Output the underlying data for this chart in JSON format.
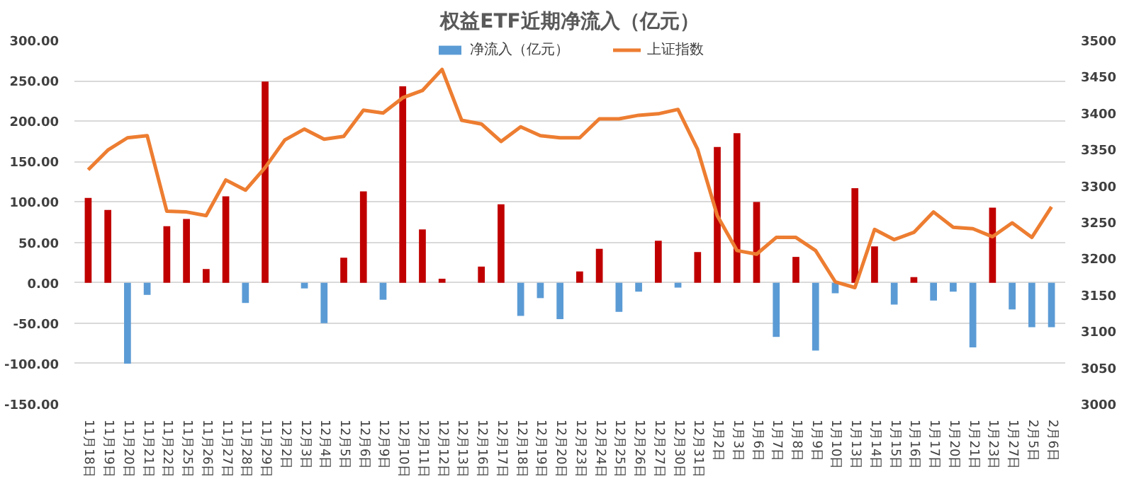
{
  "chart_data": {
    "type": "bar",
    "title": "权益ETF近期净流入（亿元）",
    "categories": [
      "11月18日",
      "11月19日",
      "11月20日",
      "11月21日",
      "11月22日",
      "11月25日",
      "11月26日",
      "11月27日",
      "11月28日",
      "11月29日",
      "12月2日",
      "12月3日",
      "12月4日",
      "12月5日",
      "12月6日",
      "12月9日",
      "12月10日",
      "12月11日",
      "12月12日",
      "12月13日",
      "12月16日",
      "12月17日",
      "12月18日",
      "12月19日",
      "12月20日",
      "12月23日",
      "12月24日",
      "12月25日",
      "12月26日",
      "12月27日",
      "12月30日",
      "12月31日",
      "1月2日",
      "1月3日",
      "1月6日",
      "1月7日",
      "1月8日",
      "1月9日",
      "1月10日",
      "1月13日",
      "1月14日",
      "1月15日",
      "1月16日",
      "1月17日",
      "1月20日",
      "1月21日",
      "1月23日",
      "1月27日",
      "2月5日",
      "2月6日"
    ],
    "series": [
      {
        "name": "净流入（亿元）",
        "color": "#5b9bd5",
        "values": [
          105,
          90,
          -100,
          -15,
          70,
          79,
          17,
          107,
          -25,
          249,
          0,
          -7,
          -50,
          31,
          113,
          -21,
          243,
          66,
          5,
          0,
          20,
          97,
          -41,
          -19,
          -45,
          14,
          42,
          -36,
          -11,
          52,
          -6,
          38,
          168,
          185,
          100,
          -67,
          32,
          -84,
          -13,
          117,
          45,
          -27,
          7,
          -22,
          -11,
          -80,
          93,
          -33,
          -55,
          -55
        ],
        "colors": [
          "#c00000",
          "#c00000",
          "#5b9bd5",
          "#5b9bd5",
          "#c00000",
          "#c00000",
          "#c00000",
          "#c00000",
          "#5b9bd5",
          "#c00000",
          "#c00000",
          "#5b9bd5",
          "#5b9bd5",
          "#c00000",
          "#c00000",
          "#5b9bd5",
          "#c00000",
          "#c00000",
          "#c00000",
          "#c00000",
          "#c00000",
          "#c00000",
          "#5b9bd5",
          "#5b9bd5",
          "#5b9bd5",
          "#c00000",
          "#c00000",
          "#5b9bd5",
          "#5b9bd5",
          "#c00000",
          "#5b9bd5",
          "#c00000",
          "#c00000",
          "#c00000",
          "#c00000",
          "#5b9bd5",
          "#c00000",
          "#5b9bd5",
          "#5b9bd5",
          "#c00000",
          "#c00000",
          "#5b9bd5",
          "#c00000",
          "#5b9bd5",
          "#5b9bd5",
          "#5b9bd5",
          "#c00000",
          "#5b9bd5",
          "#5b9bd5",
          "#5b9bd5"
        ]
      },
      {
        "name": "上证指数",
        "type": "line",
        "axis": "y2",
        "color": "#ed7d31",
        "values": [
          3322,
          3349,
          3366,
          3369,
          3265,
          3264,
          3259,
          3308,
          3294,
          3325,
          3363,
          3378,
          3364,
          3368,
          3404,
          3400,
          3421,
          3431,
          3460,
          3390,
          3385,
          3361,
          3381,
          3369,
          3366,
          3366,
          3392,
          3392,
          3397,
          3399,
          3405,
          3350,
          3259,
          3211,
          3206,
          3229,
          3229,
          3211,
          3168,
          3160,
          3240,
          3226,
          3236,
          3264,
          3243,
          3241,
          3230,
          3249,
          3229,
          3271
        ]
      }
    ],
    "ylim": [
      -150,
      300
    ],
    "yticks": [
      {
        "value": -150,
        "label": "-150.00"
      },
      {
        "value": -100,
        "label": "-100.00"
      },
      {
        "value": -50,
        "label": "-50.00"
      },
      {
        "value": 0,
        "label": "0.00"
      },
      {
        "value": 50,
        "label": "50.00"
      },
      {
        "value": 100,
        "label": "100.00"
      },
      {
        "value": 150,
        "label": "150.00"
      },
      {
        "value": 200,
        "label": "200.00"
      },
      {
        "value": 250,
        "label": "250.00"
      },
      {
        "value": 300,
        "label": "300.00"
      }
    ],
    "y2lim": [
      3000,
      3500
    ],
    "y2ticks": [
      3000,
      3050,
      3100,
      3150,
      3200,
      3250,
      3300,
      3350,
      3400,
      3450,
      3500
    ],
    "grid": "y",
    "legend": "top"
  }
}
